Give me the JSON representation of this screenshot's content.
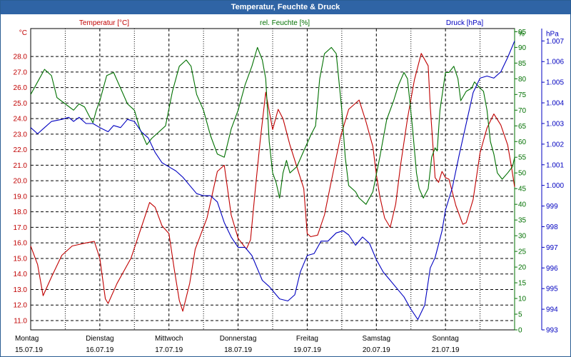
{
  "window": {
    "title": "Temperatur, Feuchte & Druck"
  },
  "colors": {
    "temperature": "#c00000",
    "humidity": "#007000",
    "pressure": "#0000c0",
    "grid": "#000000",
    "titlebar": "#2f64a5"
  },
  "chart_data": {
    "type": "line",
    "title": "Temperatur, Feuchte & Druck",
    "x_range": [
      0,
      7
    ],
    "days": [
      {
        "name": "Montag",
        "date": "15.07.19"
      },
      {
        "name": "Dienstag",
        "date": "16.07.19"
      },
      {
        "name": "Mittwoch",
        "date": "17.07.19"
      },
      {
        "name": "Donnerstag",
        "date": "18.07.19"
      },
      {
        "name": "Freitag",
        "date": "19.07.19"
      },
      {
        "name": "Samstag",
        "date": "20.07.19"
      },
      {
        "name": "Sonntag",
        "date": "21.07.19"
      }
    ],
    "axes": {
      "temperature": {
        "unit": "°C",
        "legend": "Temperatur [°C]",
        "range": [
          10.4,
          29.8
        ],
        "ticks": [
          "11.0",
          "12.0",
          "13.0",
          "14.0",
          "15.0",
          "16.0",
          "17.0",
          "18.0",
          "19.0",
          "20.0",
          "21.0",
          "22.0",
          "23.0",
          "24.0",
          "25.0",
          "26.0",
          "27.0",
          "28.0"
        ]
      },
      "humidity": {
        "unit": "%",
        "legend": "rel. Feuchte [%]",
        "range": [
          0,
          96
        ],
        "ticks": [
          "0",
          "5",
          "10",
          "15",
          "20",
          "25",
          "30",
          "35",
          "40",
          "45",
          "50",
          "55",
          "60",
          "65",
          "70",
          "75",
          "80",
          "85",
          "90",
          "95",
          "%"
        ]
      },
      "pressure": {
        "unit": "hPa",
        "legend": "Druck [hPa]",
        "range": [
          993,
          1007.6
        ],
        "ticks": [
          "993",
          "994",
          "995",
          "996",
          "997",
          "998",
          "999",
          "1.000",
          "1.001",
          "1.002",
          "1.003",
          "1.004",
          "1.005",
          "1.006",
          "1.007",
          "hPa"
        ]
      }
    },
    "series": [
      {
        "name": "Temperatur",
        "axis": "temperature",
        "color": "#c00000",
        "points": [
          [
            0,
            15.8
          ],
          [
            0.1,
            14.6
          ],
          [
            0.18,
            12.6
          ],
          [
            0.3,
            13.8
          ],
          [
            0.45,
            15.2
          ],
          [
            0.6,
            15.8
          ],
          [
            0.8,
            16.0
          ],
          [
            0.92,
            16.1
          ],
          [
            1.0,
            15.0
          ],
          [
            1.08,
            12.4
          ],
          [
            1.12,
            12.1
          ],
          [
            1.25,
            13.4
          ],
          [
            1.45,
            15.0
          ],
          [
            1.6,
            17.0
          ],
          [
            1.72,
            18.6
          ],
          [
            1.8,
            18.3
          ],
          [
            1.9,
            17.1
          ],
          [
            2.0,
            16.6
          ],
          [
            2.08,
            14.2
          ],
          [
            2.15,
            12.3
          ],
          [
            2.2,
            11.6
          ],
          [
            2.3,
            13.4
          ],
          [
            2.38,
            15.6
          ],
          [
            2.55,
            17.6
          ],
          [
            2.7,
            20.6
          ],
          [
            2.8,
            21.0
          ],
          [
            2.9,
            17.8
          ],
          [
            3.0,
            16.3
          ],
          [
            3.12,
            15.6
          ],
          [
            3.18,
            16.2
          ],
          [
            3.25,
            19.5
          ],
          [
            3.32,
            22.6
          ],
          [
            3.4,
            25.7
          ],
          [
            3.5,
            23.3
          ],
          [
            3.58,
            24.6
          ],
          [
            3.65,
            24.0
          ],
          [
            3.75,
            22.3
          ],
          [
            3.95,
            19.5
          ],
          [
            4.0,
            16.6
          ],
          [
            4.05,
            16.4
          ],
          [
            4.15,
            16.5
          ],
          [
            4.25,
            17.8
          ],
          [
            4.35,
            20.0
          ],
          [
            4.48,
            22.8
          ],
          [
            4.6,
            24.6
          ],
          [
            4.75,
            25.2
          ],
          [
            4.85,
            23.8
          ],
          [
            4.95,
            22.2
          ],
          [
            5.0,
            20.4
          ],
          [
            5.05,
            19.0
          ],
          [
            5.12,
            17.6
          ],
          [
            5.2,
            17.0
          ],
          [
            5.28,
            18.5
          ],
          [
            5.35,
            21.0
          ],
          [
            5.45,
            24.0
          ],
          [
            5.55,
            26.5
          ],
          [
            5.65,
            28.2
          ],
          [
            5.75,
            27.4
          ],
          [
            5.78,
            24.8
          ],
          [
            5.85,
            20.2
          ],
          [
            5.9,
            19.9
          ],
          [
            5.95,
            20.6
          ],
          [
            6.0,
            20.2
          ],
          [
            6.05,
            20.1
          ],
          [
            6.15,
            18.4
          ],
          [
            6.25,
            17.2
          ],
          [
            6.3,
            17.3
          ],
          [
            6.4,
            18.8
          ],
          [
            6.5,
            21.8
          ],
          [
            6.6,
            23.4
          ],
          [
            6.7,
            24.3
          ],
          [
            6.8,
            23.6
          ],
          [
            6.9,
            22.3
          ],
          [
            6.95,
            21.0
          ],
          [
            7.0,
            19.6
          ]
        ]
      },
      {
        "name": "rel. Feuchte",
        "axis": "humidity",
        "color": "#007000",
        "points": [
          [
            0,
            75
          ],
          [
            0.1,
            79
          ],
          [
            0.2,
            83
          ],
          [
            0.3,
            81
          ],
          [
            0.38,
            74
          ],
          [
            0.5,
            72
          ],
          [
            0.62,
            70
          ],
          [
            0.7,
            72
          ],
          [
            0.78,
            71
          ],
          [
            0.85,
            68
          ],
          [
            0.9,
            66
          ],
          [
            0.95,
            70
          ],
          [
            1.0,
            73
          ],
          [
            1.1,
            81
          ],
          [
            1.2,
            82
          ],
          [
            1.3,
            77
          ],
          [
            1.4,
            72
          ],
          [
            1.5,
            70
          ],
          [
            1.58,
            64
          ],
          [
            1.68,
            59
          ],
          [
            1.75,
            61
          ],
          [
            1.85,
            63
          ],
          [
            1.95,
            65
          ],
          [
            2.05,
            76
          ],
          [
            2.15,
            84
          ],
          [
            2.25,
            86
          ],
          [
            2.32,
            84
          ],
          [
            2.4,
            75
          ],
          [
            2.5,
            70
          ],
          [
            2.6,
            62
          ],
          [
            2.7,
            56
          ],
          [
            2.8,
            55
          ],
          [
            2.9,
            64
          ],
          [
            3.0,
            70
          ],
          [
            3.1,
            78
          ],
          [
            3.2,
            84
          ],
          [
            3.28,
            90
          ],
          [
            3.35,
            86
          ],
          [
            3.4,
            80
          ],
          [
            3.45,
            60
          ],
          [
            3.5,
            50
          ],
          [
            3.55,
            47
          ],
          [
            3.6,
            42
          ],
          [
            3.65,
            50
          ],
          [
            3.7,
            54
          ],
          [
            3.75,
            50
          ],
          [
            3.85,
            52
          ],
          [
            3.95,
            57
          ],
          [
            4.05,
            62
          ],
          [
            4.12,
            65
          ],
          [
            4.18,
            80
          ],
          [
            4.25,
            88
          ],
          [
            4.35,
            90
          ],
          [
            4.42,
            88
          ],
          [
            4.5,
            70
          ],
          [
            4.55,
            55
          ],
          [
            4.6,
            46
          ],
          [
            4.7,
            44
          ],
          [
            4.75,
            42
          ],
          [
            4.85,
            40
          ],
          [
            4.95,
            44
          ],
          [
            5.05,
            55
          ],
          [
            5.15,
            67
          ],
          [
            5.25,
            73
          ],
          [
            5.32,
            78
          ],
          [
            5.4,
            82
          ],
          [
            5.45,
            80
          ],
          [
            5.52,
            65
          ],
          [
            5.58,
            50
          ],
          [
            5.62,
            45
          ],
          [
            5.68,
            42
          ],
          [
            5.75,
            45
          ],
          [
            5.8,
            55
          ],
          [
            5.85,
            58
          ],
          [
            5.88,
            57
          ],
          [
            5.92,
            70
          ],
          [
            6.0,
            82
          ],
          [
            6.05,
            82
          ],
          [
            6.12,
            84
          ],
          [
            6.18,
            80
          ],
          [
            6.22,
            73
          ],
          [
            6.3,
            76
          ],
          [
            6.38,
            77
          ],
          [
            6.42,
            79
          ],
          [
            6.5,
            77
          ],
          [
            6.55,
            76
          ],
          [
            6.6,
            70
          ],
          [
            6.65,
            60
          ],
          [
            6.7,
            56
          ],
          [
            6.75,
            50
          ],
          [
            6.82,
            48
          ],
          [
            6.9,
            50
          ],
          [
            6.97,
            52
          ],
          [
            7.0,
            55
          ]
        ]
      },
      {
        "name": "Druck",
        "axis": "pressure",
        "color": "#0000c0",
        "points": [
          [
            0,
            1002.8
          ],
          [
            0.1,
            1002.5
          ],
          [
            0.2,
            1002.8
          ],
          [
            0.3,
            1003.1
          ],
          [
            0.45,
            1003.2
          ],
          [
            0.55,
            1003.3
          ],
          [
            0.62,
            1003.1
          ],
          [
            0.7,
            1003.3
          ],
          [
            0.8,
            1003.0
          ],
          [
            0.9,
            1003.0
          ],
          [
            1.0,
            1002.8
          ],
          [
            1.12,
            1002.6
          ],
          [
            1.2,
            1002.9
          ],
          [
            1.3,
            1002.8
          ],
          [
            1.4,
            1003.2
          ],
          [
            1.5,
            1003.1
          ],
          [
            1.6,
            1002.6
          ],
          [
            1.7,
            1002.3
          ],
          [
            1.8,
            1001.6
          ],
          [
            1.9,
            1001.1
          ],
          [
            2.0,
            1000.9
          ],
          [
            2.1,
            1000.7
          ],
          [
            2.2,
            1000.4
          ],
          [
            2.3,
            1000.0
          ],
          [
            2.4,
            999.6
          ],
          [
            2.5,
            999.5
          ],
          [
            2.6,
            999.5
          ],
          [
            2.7,
            999.2
          ],
          [
            2.8,
            998.2
          ],
          [
            2.9,
            997.5
          ],
          [
            3.0,
            997.0
          ],
          [
            3.1,
            997.0
          ],
          [
            3.2,
            996.6
          ],
          [
            3.35,
            995.4
          ],
          [
            3.45,
            995.1
          ],
          [
            3.6,
            994.5
          ],
          [
            3.72,
            994.4
          ],
          [
            3.82,
            994.7
          ],
          [
            3.9,
            995.8
          ],
          [
            4.0,
            996.6
          ],
          [
            4.1,
            996.7
          ],
          [
            4.2,
            997.3
          ],
          [
            4.3,
            997.3
          ],
          [
            4.42,
            997.7
          ],
          [
            4.52,
            997.8
          ],
          [
            4.6,
            997.6
          ],
          [
            4.7,
            997.1
          ],
          [
            4.8,
            997.5
          ],
          [
            4.9,
            997.2
          ],
          [
            5.0,
            996.4
          ],
          [
            5.1,
            995.8
          ],
          [
            5.2,
            995.4
          ],
          [
            5.3,
            995.0
          ],
          [
            5.4,
            994.6
          ],
          [
            5.5,
            994.0
          ],
          [
            5.6,
            993.5
          ],
          [
            5.7,
            994.2
          ],
          [
            5.78,
            996.0
          ],
          [
            5.85,
            996.5
          ],
          [
            5.95,
            997.8
          ],
          [
            6.0,
            998.8
          ],
          [
            6.1,
            999.9
          ],
          [
            6.2,
            1001.5
          ],
          [
            6.3,
            1003.0
          ],
          [
            6.4,
            1004.5
          ],
          [
            6.5,
            1005.2
          ],
          [
            6.6,
            1005.3
          ],
          [
            6.7,
            1005.2
          ],
          [
            6.8,
            1005.5
          ],
          [
            6.9,
            1006.2
          ],
          [
            7.0,
            1007.0
          ]
        ]
      }
    ]
  }
}
